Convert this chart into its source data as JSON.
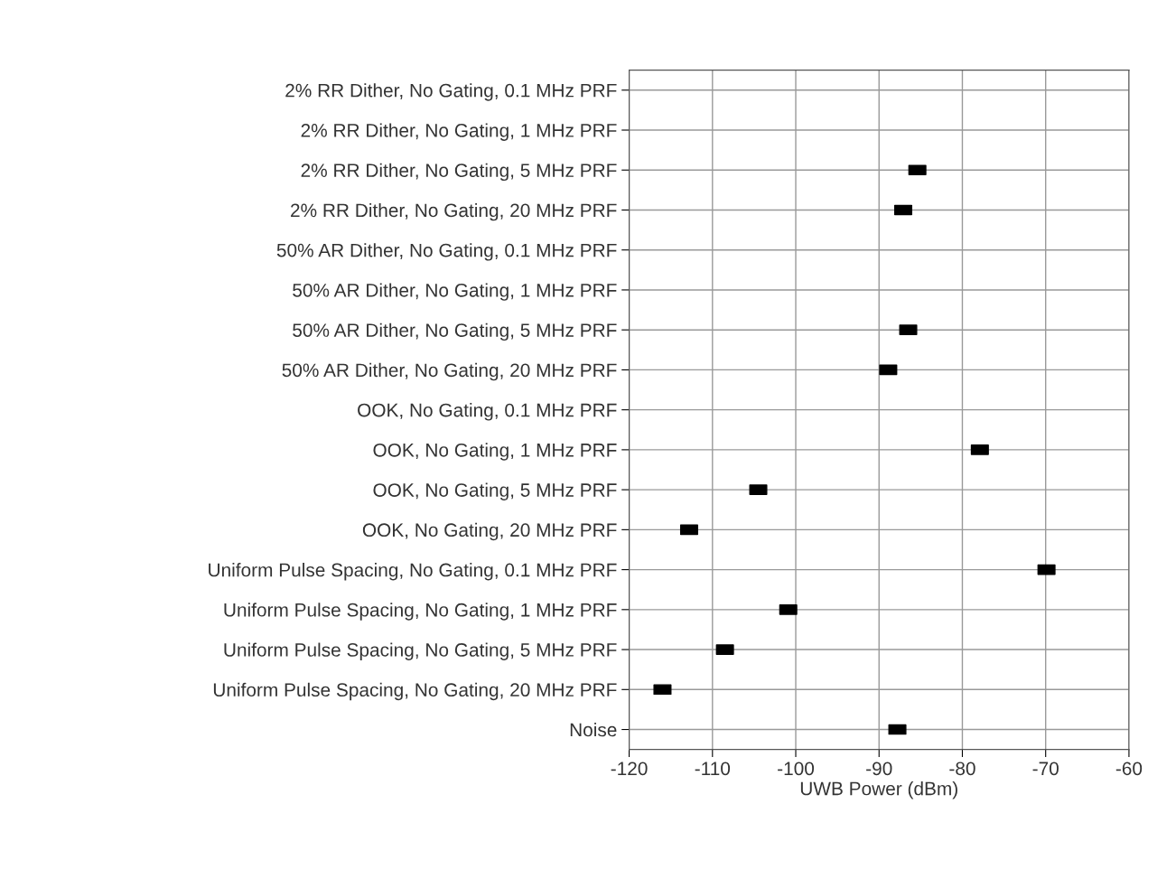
{
  "chart_data": {
    "type": "scatter",
    "orientation": "horizontal",
    "xlabel": "UWB Power (dBm)",
    "categories": [
      "2% RR Dither, No Gating, 0.1 MHz PRF",
      "2% RR Dither, No Gating, 1 MHz PRF",
      "2% RR Dither, No Gating, 5 MHz PRF",
      "2% RR Dither, No Gating, 20 MHz PRF",
      "50% AR Dither, No Gating, 0.1 MHz PRF",
      "50% AR Dither, No Gating, 1 MHz PRF",
      "50% AR Dither, No Gating, 5 MHz PRF",
      "50% AR Dither, No Gating, 20 MHz PRF",
      "OOK, No Gating, 0.1 MHz PRF",
      "OOK, No Gating, 1 MHz PRF",
      "OOK, No Gating, 5 MHz PRF",
      "OOK, No Gating, 20 MHz PRF",
      "Uniform Pulse Spacing, No Gating, 0.1 MHz PRF",
      "Uniform Pulse Spacing, No Gating, 1 MHz PRF",
      "Uniform Pulse Spacing, No Gating, 5 MHz PRF",
      "Uniform Pulse Spacing, No Gating, 20 MHz PRF",
      "Noise"
    ],
    "values": [
      null,
      null,
      -85.4,
      -87.1,
      null,
      null,
      -86.5,
      -88.9,
      null,
      -77.9,
      -104.5,
      -112.8,
      -69.9,
      -100.9,
      -108.5,
      -116,
      -87.8
    ],
    "color": "#000000",
    "marker": "square",
    "grid": true,
    "legend": false,
    "xlim": [
      -120,
      -60
    ],
    "xticks": [
      -120,
      -110,
      -100,
      -90,
      -80,
      -70,
      -60
    ]
  }
}
